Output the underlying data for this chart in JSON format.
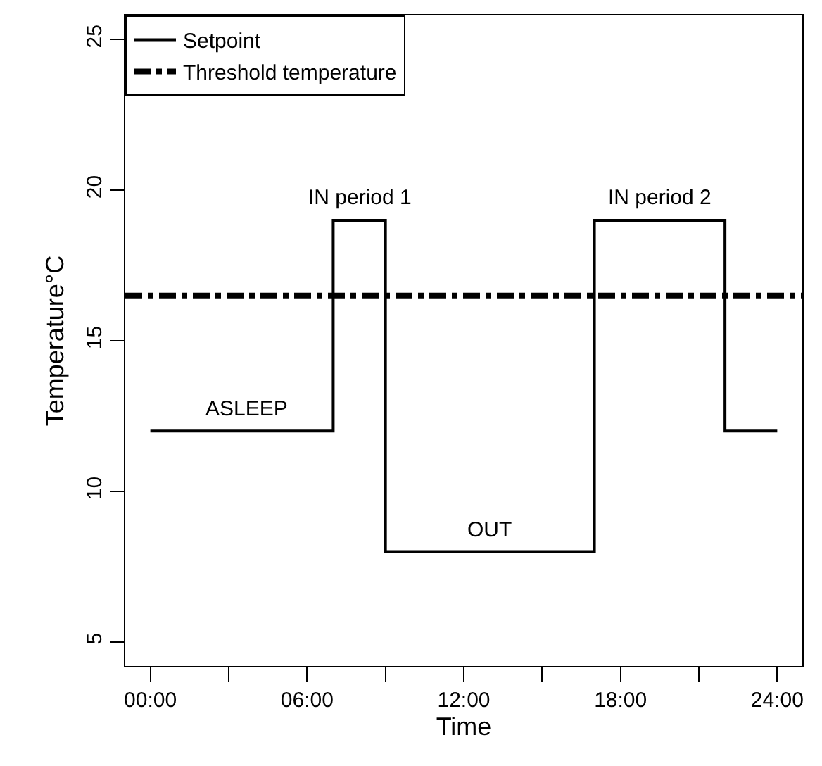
{
  "chart_data": {
    "type": "step",
    "xlabel": "Time",
    "ylabel": "Temperature°C",
    "x": [
      0,
      7,
      9,
      17,
      22,
      24
    ],
    "series": [
      {
        "name": "Setpoint",
        "color": "#000000",
        "values": [
          12,
          19,
          8,
          19,
          12,
          12
        ]
      }
    ],
    "ref_lines": [
      {
        "axis": "y",
        "value": 16.5,
        "label": "Threshold temperature",
        "color": "#000000",
        "line_style": "dashdot"
      }
    ],
    "annotations": [
      {
        "text": "ASLEEP",
        "x": 3.7,
        "y": 12
      },
      {
        "text": "IN period 1",
        "x": 8,
        "y": 19
      },
      {
        "text": "OUT",
        "x": 13,
        "y": 8
      },
      {
        "text": "IN period 2",
        "x": 19.5,
        "y": 19
      }
    ],
    "xlim": [
      -0.96,
      24.96
    ],
    "xticks": [
      {
        "value": 0,
        "label": "00:00"
      },
      {
        "value": 3,
        "label": null
      },
      {
        "value": 6,
        "label": "06:00"
      },
      {
        "value": 9,
        "label": null
      },
      {
        "value": 12,
        "label": "12:00"
      },
      {
        "value": 15,
        "label": null
      },
      {
        "value": 18,
        "label": "18:00"
      },
      {
        "value": 21,
        "label": null
      },
      {
        "value": 24,
        "label": "24:00"
      }
    ],
    "ylim": [
      4.2,
      25.8
    ],
    "yticks": [
      5,
      10,
      15,
      20,
      25
    ],
    "grid": false,
    "legend": "top left",
    "line_style": "solid",
    "marker": "none"
  }
}
